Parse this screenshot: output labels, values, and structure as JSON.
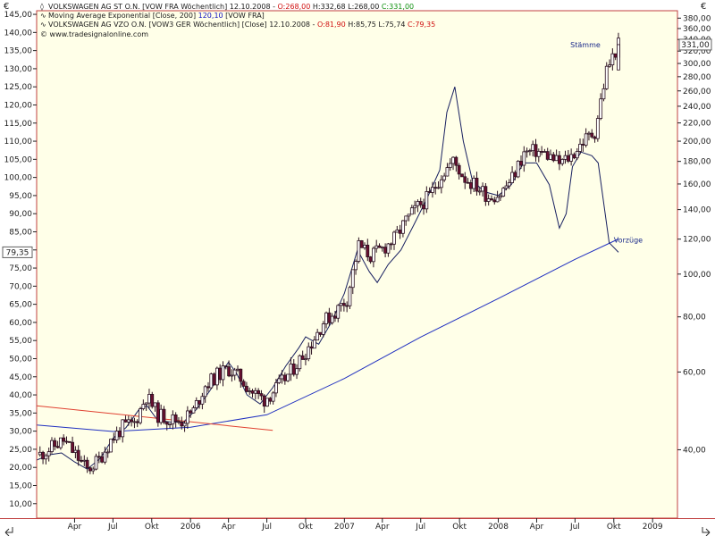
{
  "window": {
    "currency_left": "€",
    "currency_right": "€",
    "website": "© www.tradesignalonline.com"
  },
  "legend": [
    {
      "marker": "◊",
      "parts": [
        {
          "text": "VOLKSWAGEN AG ST O.N. [VOW FRA  Wöchentlich] 12.10.2008 - ",
          "color": "#202020"
        },
        {
          "text": "O:268,00",
          "color": "#d01010"
        },
        {
          "text": " H:332,68 L:268,00 ",
          "color": "#202020"
        },
        {
          "text": "C:331,00",
          "color": "#109010"
        }
      ]
    },
    {
      "marker": "∿",
      "parts": [
        {
          "text": "Moving Average Exponential [Close, 200] ",
          "color": "#202020"
        },
        {
          "text": "120,10",
          "color": "#1010c0"
        },
        {
          "text": " [VOW FRA]",
          "color": "#202020"
        }
      ]
    },
    {
      "marker": "∿",
      "parts": [
        {
          "text": "VOLKSWAGEN AG VZO O.N. [VOW3 GER  Wöchentlich] [Close] 12.10.2008 - ",
          "color": "#202020"
        },
        {
          "text": "O:81,90",
          "color": "#d01010"
        },
        {
          "text": " H:85,75 L:75,74 ",
          "color": "#202020"
        },
        {
          "text": "C:79,35",
          "color": "#d01010"
        }
      ]
    }
  ],
  "chart_data": {
    "type": "line",
    "left_axis": {
      "ylim": [
        6,
        146
      ],
      "ticks": [
        "10,00",
        "15,00",
        "20,00",
        "25,00",
        "30,00",
        "35,00",
        "40,00",
        "45,00",
        "50,00",
        "55,00",
        "60,00",
        "65,00",
        "70,00",
        "75,00",
        "80,00",
        "85,00",
        "90,00",
        "95,00",
        "100,00",
        "105,00",
        "110,00",
        "115,00",
        "120,00",
        "125,00",
        "130,00",
        "135,00",
        "140,00",
        "145,00"
      ],
      "current_value_label": "79,35"
    },
    "right_axis": {
      "scale": "log",
      "ylim": [
        28,
        395
      ],
      "ticks": [
        "40,00",
        "60,00",
        "80,00",
        "100,00",
        "120,00",
        "140,00",
        "160,00",
        "180,00",
        "200,00",
        "220,00",
        "240,00",
        "260,00",
        "280,00",
        "300,00",
        "320,00",
        "340,00",
        "360,00",
        "380,00"
      ],
      "current_value_label": "331,00"
    },
    "x_axis": {
      "xlim": [
        "2005-01-01",
        "2009-03-01"
      ],
      "ticks": [
        {
          "label": "Apr",
          "date": "2005-04-01"
        },
        {
          "label": "Jul",
          "date": "2005-07-01"
        },
        {
          "label": "Okt",
          "date": "2005-10-01"
        },
        {
          "label": "2006",
          "date": "2006-01-01"
        },
        {
          "label": "Apr",
          "date": "2006-04-01"
        },
        {
          "label": "Jul",
          "date": "2006-07-01"
        },
        {
          "label": "Okt",
          "date": "2006-10-01"
        },
        {
          "label": "2007",
          "date": "2007-01-01"
        },
        {
          "label": "Apr",
          "date": "2007-04-01"
        },
        {
          "label": "Jul",
          "date": "2007-07-01"
        },
        {
          "label": "Okt",
          "date": "2007-10-01"
        },
        {
          "label": "2008",
          "date": "2008-01-01"
        },
        {
          "label": "Apr",
          "date": "2008-04-01"
        },
        {
          "label": "Jul",
          "date": "2008-07-01"
        },
        {
          "label": "Okt",
          "date": "2008-10-01"
        },
        {
          "label": "2009",
          "date": "2009-01-01"
        }
      ]
    },
    "series": [
      {
        "name": "VOLKSWAGEN AG ST O.N. [VOW FRA Wöchentlich]",
        "kind": "candlestick",
        "axis": "right",
        "up_color": "#ffffff",
        "down_color": "#6b1030",
        "points": [
          {
            "x": "2005-01-09",
            "c": 39
          },
          {
            "x": "2005-02-06",
            "c": 40.5
          },
          {
            "x": "2005-03-06",
            "c": 42
          },
          {
            "x": "2005-04-03",
            "c": 39
          },
          {
            "x": "2005-05-01",
            "c": 36
          },
          {
            "x": "2005-05-29",
            "c": 38
          },
          {
            "x": "2005-06-26",
            "c": 42
          },
          {
            "x": "2005-07-24",
            "c": 45
          },
          {
            "x": "2005-08-21",
            "c": 46
          },
          {
            "x": "2005-09-18",
            "c": 53
          },
          {
            "x": "2005-10-16",
            "c": 48
          },
          {
            "x": "2005-11-13",
            "c": 47
          },
          {
            "x": "2005-12-11",
            "c": 46.5
          },
          {
            "x": "2006-01-08",
            "c": 49
          },
          {
            "x": "2006-02-05",
            "c": 56
          },
          {
            "x": "2006-03-05",
            "c": 59
          },
          {
            "x": "2006-04-02",
            "c": 61
          },
          {
            "x": "2006-04-30",
            "c": 58
          },
          {
            "x": "2006-05-28",
            "c": 54
          },
          {
            "x": "2006-06-25",
            "c": 52
          },
          {
            "x": "2006-07-23",
            "c": 55
          },
          {
            "x": "2006-08-20",
            "c": 59
          },
          {
            "x": "2006-09-17",
            "c": 64
          },
          {
            "x": "2006-10-15",
            "c": 70
          },
          {
            "x": "2006-11-12",
            "c": 78
          },
          {
            "x": "2006-12-10",
            "c": 82
          },
          {
            "x": "2007-01-07",
            "c": 88
          },
          {
            "x": "2007-02-04",
            "c": 116
          },
          {
            "x": "2007-03-04",
            "c": 110
          },
          {
            "x": "2007-04-01",
            "c": 114
          },
          {
            "x": "2007-04-29",
            "c": 120
          },
          {
            "x": "2007-05-27",
            "c": 132
          },
          {
            "x": "2007-06-24",
            "c": 142
          },
          {
            "x": "2007-07-22",
            "c": 150
          },
          {
            "x": "2007-08-19",
            "c": 168
          },
          {
            "x": "2007-09-16",
            "c": 180
          },
          {
            "x": "2007-10-14",
            "c": 165
          },
          {
            "x": "2007-11-11",
            "c": 158
          },
          {
            "x": "2007-12-09",
            "c": 150
          },
          {
            "x": "2008-01-06",
            "c": 152
          },
          {
            "x": "2008-02-03",
            "c": 165
          },
          {
            "x": "2008-03-02",
            "c": 188
          },
          {
            "x": "2008-03-30",
            "c": 190
          },
          {
            "x": "2008-04-27",
            "c": 186
          },
          {
            "x": "2008-05-25",
            "c": 178
          },
          {
            "x": "2008-06-22",
            "c": 185
          },
          {
            "x": "2008-07-20",
            "c": 200
          },
          {
            "x": "2008-08-17",
            "c": 210
          },
          {
            "x": "2008-09-14",
            "c": 290
          },
          {
            "x": "2008-10-12",
            "c": 331
          }
        ]
      },
      {
        "name": "Moving Average Exponential [Close, 200]",
        "kind": "line",
        "axis": "right",
        "color": "#2030c0",
        "points": [
          {
            "x": "2005-01-01",
            "y": 45.5
          },
          {
            "x": "2005-07-01",
            "y": 44
          },
          {
            "x": "2006-01-01",
            "y": 45
          },
          {
            "x": "2006-07-01",
            "y": 48
          },
          {
            "x": "2007-01-01",
            "y": 58
          },
          {
            "x": "2007-07-01",
            "y": 72
          },
          {
            "x": "2008-01-01",
            "y": 88
          },
          {
            "x": "2008-07-01",
            "y": 108
          },
          {
            "x": "2008-10-12",
            "y": 120.1
          }
        ]
      },
      {
        "name": "VOLKSWAGEN AG VZO O.N. [VOW3 GER Wöchentlich] [Close]",
        "kind": "line",
        "axis": "left",
        "color": "#182060",
        "points": [
          {
            "x": "2005-01-01",
            "y": 22
          },
          {
            "x": "2005-02-01",
            "y": 23.5
          },
          {
            "x": "2005-03-01",
            "y": 24
          },
          {
            "x": "2005-04-01",
            "y": 21.5
          },
          {
            "x": "2005-05-01",
            "y": 19.5
          },
          {
            "x": "2005-06-01",
            "y": 22.5
          },
          {
            "x": "2005-07-01",
            "y": 28
          },
          {
            "x": "2005-08-01",
            "y": 31
          },
          {
            "x": "2005-09-01",
            "y": 36
          },
          {
            "x": "2005-09-20",
            "y": 37
          },
          {
            "x": "2005-10-15",
            "y": 33
          },
          {
            "x": "2005-11-15",
            "y": 32.5
          },
          {
            "x": "2005-12-15",
            "y": 32.5
          },
          {
            "x": "2006-01-15",
            "y": 36
          },
          {
            "x": "2006-02-15",
            "y": 41
          },
          {
            "x": "2006-03-15",
            "y": 46
          },
          {
            "x": "2006-04-01",
            "y": 49
          },
          {
            "x": "2006-04-20",
            "y": 46
          },
          {
            "x": "2006-05-15",
            "y": 40
          },
          {
            "x": "2006-06-15",
            "y": 37.5
          },
          {
            "x": "2006-07-15",
            "y": 42
          },
          {
            "x": "2006-08-15",
            "y": 48
          },
          {
            "x": "2006-09-15",
            "y": 53
          },
          {
            "x": "2006-10-01",
            "y": 56
          },
          {
            "x": "2006-11-01",
            "y": 54
          },
          {
            "x": "2006-12-01",
            "y": 60
          },
          {
            "x": "2007-01-01",
            "y": 68
          },
          {
            "x": "2007-02-01",
            "y": 80
          },
          {
            "x": "2007-03-01",
            "y": 74
          },
          {
            "x": "2007-03-20",
            "y": 71
          },
          {
            "x": "2007-04-15",
            "y": 76
          },
          {
            "x": "2007-05-15",
            "y": 80
          },
          {
            "x": "2007-06-15",
            "y": 87
          },
          {
            "x": "2007-07-15",
            "y": 94
          },
          {
            "x": "2007-08-15",
            "y": 102
          },
          {
            "x": "2007-09-01",
            "y": 118
          },
          {
            "x": "2007-09-20",
            "y": 125
          },
          {
            "x": "2007-10-10",
            "y": 110
          },
          {
            "x": "2007-11-01",
            "y": 99
          },
          {
            "x": "2007-12-01",
            "y": 96
          },
          {
            "x": "2008-01-01",
            "y": 95
          },
          {
            "x": "2008-02-01",
            "y": 98
          },
          {
            "x": "2008-03-01",
            "y": 104
          },
          {
            "x": "2008-04-01",
            "y": 104
          },
          {
            "x": "2008-05-01",
            "y": 98
          },
          {
            "x": "2008-05-25",
            "y": 86
          },
          {
            "x": "2008-06-10",
            "y": 90
          },
          {
            "x": "2008-06-25",
            "y": 103
          },
          {
            "x": "2008-07-15",
            "y": 107
          },
          {
            "x": "2008-08-10",
            "y": 106
          },
          {
            "x": "2008-08-25",
            "y": 104
          },
          {
            "x": "2008-09-20",
            "y": 82
          },
          {
            "x": "2008-10-12",
            "y": 79.35
          }
        ]
      },
      {
        "name": "",
        "kind": "trendline",
        "axis": "left",
        "color": "#e04030",
        "points": [
          {
            "x": "2005-01-01",
            "y": 37
          },
          {
            "x": "2006-07-15",
            "y": 30.2
          }
        ]
      }
    ],
    "annotations": [
      {
        "text": "Stämme",
        "x": "2008-06-20",
        "axis": "right",
        "y": 326,
        "color": "#1a2a8a"
      },
      {
        "text": "Vorzüge",
        "x": "2008-10-01",
        "axis": "left",
        "y": 82,
        "color": "#1a2a8a"
      }
    ],
    "colors": {
      "background": "#ffffff",
      "plot_background": "#ffffe8",
      "frame": "#c04040",
      "axis_text": "#202020"
    },
    "grid": false,
    "legend_position": "top-left"
  }
}
